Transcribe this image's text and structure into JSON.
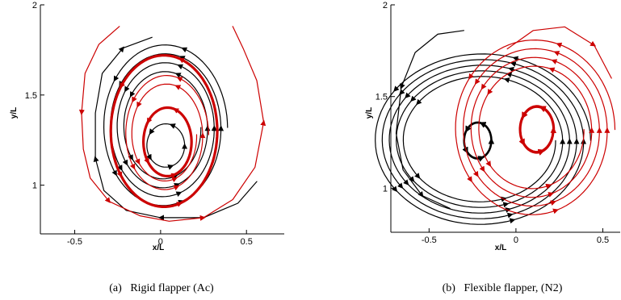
{
  "chart_data": [
    {
      "type": "line",
      "subplot_label": "(a)",
      "caption": "Rigid flapper (Ac)",
      "xlabel": "x/L",
      "ylabel": "y/L",
      "xlim": [
        -0.7,
        0.72
      ],
      "ylim": [
        0.73,
        2.0
      ],
      "xticks": [
        -0.5,
        0,
        0.5
      ],
      "xtick_labels": [
        "-0.5",
        "0",
        "0.5"
      ],
      "yticks": [
        1,
        1.5,
        2
      ],
      "ytick_labels": [
        "1",
        "1.5",
        "2"
      ],
      "series": [
        {
          "color": "#000000",
          "traces": [
            {
              "type": "loop",
              "cx": 0.02,
              "cy": 1.32,
              "rx": 0.37,
              "ry": 0.47,
              "turns": 4.0,
              "shrink": 0.58
            },
            {
              "type": "loop",
              "cx": 0.03,
              "cy": 1.22,
              "rx": 0.11,
              "ry": 0.12,
              "turns": 2.0,
              "shrink": 1.0
            },
            {
              "type": "path",
              "points": [
                [
                  0.56,
                  1.02
                ],
                [
                  0.45,
                  0.9
                ],
                [
                  0.25,
                  0.82
                ],
                [
                  0.0,
                  0.82
                ],
                [
                  -0.2,
                  0.86
                ],
                [
                  -0.33,
                  0.97
                ],
                [
                  -0.38,
                  1.15
                ],
                [
                  -0.38,
                  1.4
                ],
                [
                  -0.34,
                  1.62
                ],
                [
                  -0.22,
                  1.76
                ],
                [
                  -0.05,
                  1.82
                ]
              ]
            }
          ]
        },
        {
          "color": "#cc0000",
          "traces": [
            {
              "type": "loop",
              "cx": 0.02,
              "cy": 1.3,
              "rx": 0.31,
              "ry": 0.42,
              "turns": 1.0,
              "shrink": 1.0,
              "width": 3.2
            },
            {
              "type": "loop",
              "cx": 0.04,
              "cy": 1.24,
              "rx": 0.14,
              "ry": 0.19,
              "turns": 1.0,
              "shrink": 1.0,
              "width": 3.2
            },
            {
              "type": "loop",
              "cx": 0.03,
              "cy": 1.28,
              "rx": 0.25,
              "ry": 0.34,
              "turns": 2.0,
              "shrink": 0.72
            },
            {
              "type": "path",
              "points": [
                [
                  -0.24,
                  1.88
                ],
                [
                  -0.36,
                  1.78
                ],
                [
                  -0.44,
                  1.62
                ],
                [
                  -0.46,
                  1.4
                ],
                [
                  -0.45,
                  1.2
                ],
                [
                  -0.41,
                  1.04
                ],
                [
                  -0.3,
                  0.91
                ],
                [
                  -0.12,
                  0.83
                ],
                [
                  0.05,
                  0.8
                ],
                [
                  0.25,
                  0.82
                ],
                [
                  0.42,
                  0.92
                ],
                [
                  0.55,
                  1.1
                ],
                [
                  0.6,
                  1.35
                ],
                [
                  0.56,
                  1.58
                ],
                [
                  0.48,
                  1.76
                ],
                [
                  0.42,
                  1.88
                ]
              ]
            }
          ]
        }
      ]
    },
    {
      "type": "line",
      "subplot_label": "(b)",
      "caption": "Flexible flapper, (N2)",
      "xlabel": "x/L",
      "ylabel": "y/L",
      "xlim": [
        -0.72,
        0.6
      ],
      "ylim": [
        0.76,
        2.0
      ],
      "xticks": [
        -0.5,
        0,
        0.5
      ],
      "xtick_labels": [
        "-0.5",
        "0",
        "0.5"
      ],
      "yticks": [
        1,
        1.5,
        2
      ],
      "ytick_labels": [
        "1",
        "1.5",
        "2"
      ],
      "series": [
        {
          "color": "#000000",
          "traces": [
            {
              "type": "loop",
              "cx": -0.2,
              "cy": 1.26,
              "rx": 0.63,
              "ry": 0.48,
              "turns": 5.0,
              "shrink": 0.68
            },
            {
              "type": "loop",
              "cx": -0.22,
              "cy": 1.26,
              "rx": 0.08,
              "ry": 0.1,
              "turns": 7.0,
              "shrink": 0.96,
              "width": 2.0
            },
            {
              "type": "path",
              "points": [
                [
                  -0.3,
                  1.86
                ],
                [
                  -0.45,
                  1.84
                ],
                [
                  -0.58,
                  1.74
                ],
                [
                  -0.66,
                  1.55
                ],
                [
                  -0.69,
                  1.3
                ],
                [
                  -0.65,
                  1.1
                ],
                [
                  -0.54,
                  0.96
                ],
                [
                  -0.38,
                  0.89
                ]
              ]
            }
          ]
        },
        {
          "color": "#cc0000",
          "traces": [
            {
              "type": "loop",
              "cx": 0.1,
              "cy": 1.32,
              "rx": 0.47,
              "ry": 0.5,
              "turns": 4.0,
              "shrink": 0.62
            },
            {
              "type": "loop",
              "cx": 0.12,
              "cy": 1.32,
              "rx": 0.1,
              "ry": 0.13,
              "turns": 3.0,
              "shrink": 0.92,
              "width": 2.0
            },
            {
              "type": "path",
              "points": [
                [
                  -0.05,
                  1.76
                ],
                [
                  0.1,
                  1.86
                ],
                [
                  0.28,
                  1.88
                ],
                [
                  0.45,
                  1.78
                ],
                [
                  0.55,
                  1.6
                ]
              ]
            }
          ]
        }
      ]
    }
  ]
}
